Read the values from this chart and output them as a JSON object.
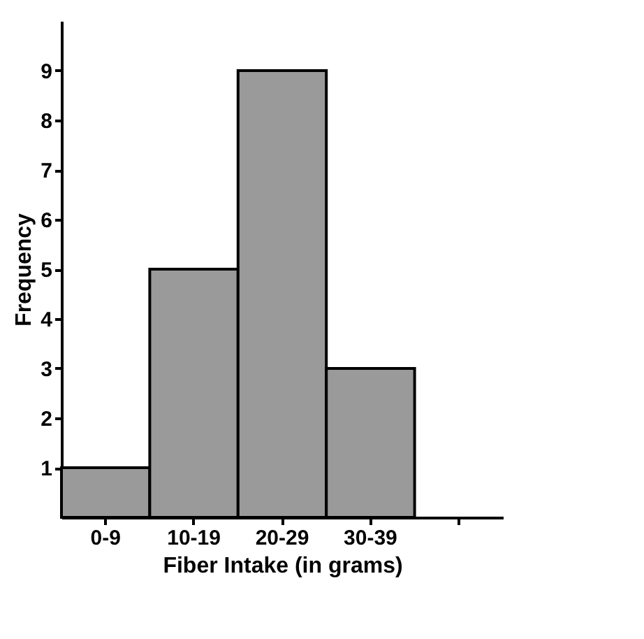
{
  "chart_data": {
    "type": "bar",
    "xlabel": "Fiber Intake (in grams)",
    "ylabel": "Frequency",
    "categories": [
      "0-9",
      "10-19",
      "20-29",
      "30-39",
      null
    ],
    "values": [
      1,
      5,
      9,
      3,
      null
    ],
    "color": "#9a9a9a",
    "ylim": [
      0,
      10
    ],
    "yticks": [
      1,
      2,
      3,
      4,
      5,
      6,
      7,
      8,
      9
    ],
    "grid": false
  }
}
